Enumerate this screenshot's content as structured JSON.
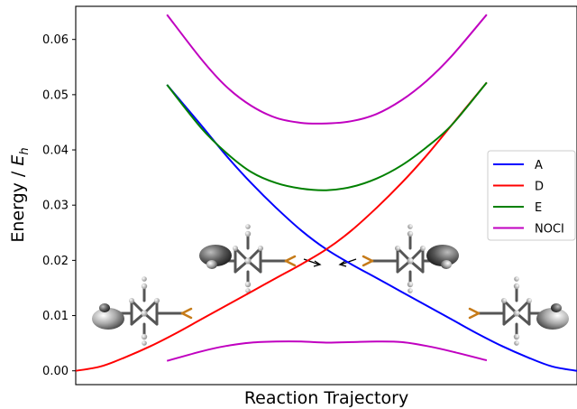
{
  "chart_data": {
    "type": "line",
    "title": "",
    "xlabel": "Reaction Trajectory",
    "ylabel": "Energy / E_h",
    "ylabel_main": "Energy / ",
    "ylabel_symbol": "E",
    "ylabel_subscript": "h",
    "xlim": [
      0,
      100
    ],
    "ylim": [
      -0.0025,
      0.066
    ],
    "yticks": [
      0.0,
      0.01,
      0.02,
      0.03,
      0.04,
      0.05,
      0.06
    ],
    "ytick_labels": [
      "0.00",
      "0.01",
      "0.02",
      "0.03",
      "0.04",
      "0.05",
      "0.06"
    ],
    "x_ticks_shown": false,
    "grid": false,
    "legend_position": "center-right",
    "series": [
      {
        "name": "A",
        "color": "#0000ff",
        "x": [
          18.2,
          25,
          30,
          35,
          40,
          45,
          50,
          55,
          60,
          65,
          70,
          75,
          80,
          85,
          90,
          95,
          100
        ],
        "y": [
          0.0518,
          0.0445,
          0.039,
          0.034,
          0.0295,
          0.0254,
          0.022,
          0.0193,
          0.0168,
          0.0143,
          0.0118,
          0.0093,
          0.0068,
          0.0045,
          0.0025,
          0.0008,
          0.0
        ]
      },
      {
        "name": "D",
        "color": "#ff0000",
        "x": [
          0,
          5,
          10,
          15,
          20,
          25,
          30,
          35,
          40,
          45,
          50,
          55,
          60,
          65,
          70,
          75,
          82
        ],
        "y": [
          0.0,
          0.0008,
          0.0025,
          0.0045,
          0.0068,
          0.0093,
          0.0118,
          0.0143,
          0.0168,
          0.0193,
          0.022,
          0.0254,
          0.0295,
          0.034,
          0.039,
          0.0445,
          0.0522
        ]
      },
      {
        "name": "E",
        "color": "#008000",
        "x": [
          18.2,
          25,
          30,
          35,
          40,
          45,
          50,
          55,
          60,
          65,
          70,
          75,
          82
        ],
        "y": [
          0.0518,
          0.044,
          0.0395,
          0.036,
          0.034,
          0.033,
          0.0327,
          0.0333,
          0.0348,
          0.0372,
          0.0405,
          0.0445,
          0.0522
        ]
      },
      {
        "name": "NOCI",
        "color": "#c000c0",
        "x": [
          18.2,
          25,
          30,
          35,
          40,
          45,
          50,
          55,
          60,
          65,
          70,
          75,
          82
        ],
        "y": [
          0.0645,
          0.0565,
          0.0515,
          0.048,
          0.0458,
          0.0449,
          0.0448,
          0.0452,
          0.0465,
          0.049,
          0.0525,
          0.057,
          0.0645
        ]
      },
      {
        "name": "NOCI",
        "color": "#c000c0",
        "x": [
          18.2,
          25,
          30,
          35,
          40,
          45,
          50,
          55,
          60,
          65,
          70,
          75,
          82
        ],
        "y": [
          0.0018,
          0.0035,
          0.0045,
          0.0051,
          0.0053,
          0.0053,
          0.0051,
          0.0052,
          0.0053,
          0.0052,
          0.0045,
          0.0035,
          0.0019
        ]
      }
    ]
  },
  "legend": {
    "items": [
      {
        "label": "A",
        "color": "#0000ff"
      },
      {
        "label": "D",
        "color": "#ff0000"
      },
      {
        "label": "E",
        "color": "#008000"
      },
      {
        "label": "NOCI",
        "color": "#c000c0"
      }
    ]
  },
  "molecule_icons": [
    "molecule-orbital-left",
    "molecule-orbital-center-left",
    "molecule-orbital-center-right",
    "molecule-orbital-right"
  ]
}
